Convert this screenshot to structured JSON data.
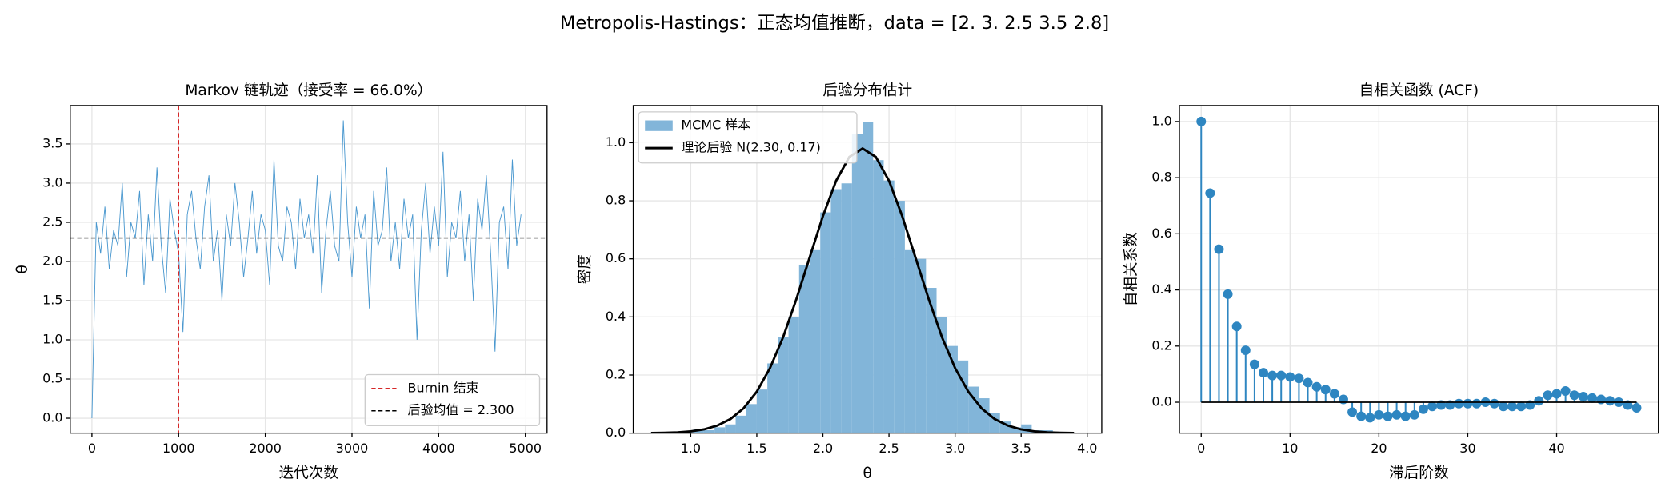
{
  "title": "Metropolis-Hastings：正态均值推断，data = [2.  3.  2.5 3.5 2.8]",
  "chart_data": [
    {
      "type": "line",
      "title": "Markov 链轨迹（接受率 = 66.0%）",
      "xlabel": "迭代次数",
      "ylabel": "θ",
      "xlim": [
        -250,
        5250
      ],
      "ylim": [
        -0.19,
        3.99
      ],
      "grid": true,
      "legend": "lower right",
      "xticks": [
        0,
        1000,
        2000,
        3000,
        4000,
        5000
      ],
      "yticks": [
        {
          "value": 0,
          "label": "0.0"
        },
        0.5,
        {
          "value": 1,
          "label": "1.0"
        },
        1.5,
        {
          "value": 2,
          "label": "2.0"
        },
        2.5,
        {
          "value": 3,
          "label": "3.0"
        },
        3.5
      ],
      "x": [
        0,
        50,
        100,
        150,
        200,
        250,
        300,
        350,
        400,
        450,
        500,
        550,
        600,
        650,
        700,
        750,
        800,
        850,
        900,
        950,
        1000,
        1050,
        1100,
        1150,
        1200,
        1250,
        1300,
        1350,
        1400,
        1450,
        1500,
        1550,
        1600,
        1650,
        1700,
        1750,
        1800,
        1850,
        1900,
        1950,
        2000,
        2050,
        2100,
        2150,
        2200,
        2250,
        2300,
        2350,
        2400,
        2450,
        2500,
        2550,
        2600,
        2650,
        2700,
        2750,
        2800,
        2850,
        2900,
        2950,
        3000,
        3050,
        3100,
        3150,
        3200,
        3250,
        3300,
        3350,
        3400,
        3450,
        3500,
        3550,
        3600,
        3650,
        3700,
        3750,
        3800,
        3850,
        3900,
        3950,
        4000,
        4050,
        4100,
        4150,
        4200,
        4250,
        4300,
        4350,
        4400,
        4450,
        4500,
        4550,
        4600,
        4650,
        4700,
        4750,
        4800,
        4850,
        4900,
        4950
      ],
      "series": [
        {
          "color": "#4a98cf",
          "values": [
            0.0,
            2.5,
            2.1,
            2.7,
            1.9,
            2.4,
            2.2,
            3.0,
            1.8,
            2.5,
            2.3,
            2.9,
            1.7,
            2.6,
            2.0,
            3.2,
            2.2,
            1.6,
            2.8,
            2.4,
            2.1,
            1.1,
            2.6,
            2.9,
            2.3,
            1.9,
            2.7,
            3.1,
            2.0,
            2.4,
            1.5,
            2.6,
            2.2,
            3.0,
            2.5,
            1.8,
            2.3,
            2.9,
            2.1,
            2.6,
            2.4,
            1.7,
            3.3,
            2.2,
            2.0,
            2.7,
            2.5,
            1.9,
            2.8,
            2.3,
            2.6,
            2.1,
            3.1,
            1.6,
            2.4,
            2.9,
            2.2,
            2.0,
            3.8,
            2.5,
            1.8,
            2.7,
            2.3,
            2.6,
            1.4,
            2.9,
            2.2,
            2.4,
            3.2,
            2.0,
            2.5,
            1.9,
            2.8,
            2.3,
            2.6,
            1.0,
            2.4,
            3.0,
            2.1,
            2.7,
            2.2,
            3.4,
            1.8,
            2.5,
            2.3,
            2.9,
            2.0,
            2.6,
            1.5,
            2.8,
            2.4,
            3.1,
            2.1,
            0.85,
            2.5,
            2.7,
            1.9,
            3.3,
            2.2,
            2.6
          ]
        }
      ],
      "reference_lines": [
        {
          "name": "Burnin 结束",
          "orientation": "v",
          "value": 1000,
          "color": "#d62728"
        },
        {
          "name": "后验均值 = 2.300",
          "orientation": "h",
          "value": 2.3,
          "color": "#000000"
        }
      ]
    },
    {
      "type": "histogram",
      "title": "后验分布估计",
      "xlabel": "θ",
      "ylabel": "密度",
      "xlim": [
        0.565,
        4.11
      ],
      "ylim": [
        0,
        1.128
      ],
      "grid": true,
      "legend": "upper left",
      "xticks": [
        {
          "value": 1,
          "label": "1.0"
        },
        1.5,
        {
          "value": 2,
          "label": "2.0"
        },
        2.5,
        {
          "value": 3,
          "label": "3.0"
        },
        3.5,
        {
          "value": 4,
          "label": "4.0"
        }
      ],
      "yticks": [
        {
          "value": 0,
          "label": "0.0"
        },
        0.2,
        0.4,
        0.6,
        0.8,
        {
          "value": 1,
          "label": "1.0"
        }
      ],
      "name": "MCMC 样本",
      "color": "#82b5d9",
      "bins": [
        0.7,
        0.78,
        0.86,
        0.94,
        1.02,
        1.1,
        1.18,
        1.26,
        1.34,
        1.42,
        1.5,
        1.58,
        1.66,
        1.74,
        1.82,
        1.9,
        1.98,
        2.06,
        2.14,
        2.22,
        2.3,
        2.38,
        2.46,
        2.54,
        2.62,
        2.7,
        2.78,
        2.86,
        2.94,
        3.02,
        3.1,
        3.18,
        3.26,
        3.34,
        3.42,
        3.5,
        3.58,
        3.66,
        3.74,
        3.82,
        3.9
      ],
      "values": [
        0.003,
        0,
        0.005,
        0.003,
        0.015,
        0.01,
        0.02,
        0.03,
        0.06,
        0.1,
        0.15,
        0.24,
        0.33,
        0.4,
        0.58,
        0.63,
        0.76,
        0.84,
        0.86,
        1.03,
        1.07,
        0.94,
        0.87,
        0.8,
        0.63,
        0.6,
        0.5,
        0.4,
        0.3,
        0.25,
        0.16,
        0.12,
        0.07,
        0.04,
        0.02,
        0.03,
        0.01,
        0.01,
        0.003,
        0
      ],
      "curve": {
        "name": "理论后验 N(2.30, 0.17)",
        "color": "#000000",
        "x": [
          0.7,
          0.8,
          0.9,
          1.0,
          1.1,
          1.2,
          1.3,
          1.4,
          1.5,
          1.6,
          1.7,
          1.8,
          1.9,
          2.0,
          2.1,
          2.2,
          2.3,
          2.4,
          2.5,
          2.6,
          2.7,
          2.8,
          2.9,
          3.0,
          3.1,
          3.2,
          3.3,
          3.4,
          3.5,
          3.6,
          3.7,
          3.8,
          3.9
        ],
        "y": [
          0.0004,
          0.0011,
          0.0027,
          0.006,
          0.0128,
          0.0257,
          0.0483,
          0.0855,
          0.1426,
          0.224,
          0.331,
          0.462,
          0.605,
          0.747,
          0.869,
          0.951,
          0.98,
          0.951,
          0.869,
          0.747,
          0.605,
          0.462,
          0.331,
          0.224,
          0.1426,
          0.0855,
          0.0483,
          0.0257,
          0.0128,
          0.006,
          0.0027,
          0.0011,
          0.0004
        ]
      }
    },
    {
      "type": "stem",
      "title": "自相关函数 (ACF)",
      "xlabel": "滞后阶数",
      "ylabel": "自相关系数",
      "xlim": [
        -2.45,
        51.45
      ],
      "ylim": [
        -0.11,
        1.057
      ],
      "grid": true,
      "color": "#2e86c1",
      "xticks": [
        0,
        10,
        20,
        30,
        40
      ],
      "yticks": [
        {
          "value": 0,
          "label": "0.0"
        },
        0.2,
        0.4,
        0.6,
        0.8,
        {
          "value": 1,
          "label": "1.0"
        }
      ],
      "x": [
        0,
        1,
        2,
        3,
        4,
        5,
        6,
        7,
        8,
        9,
        10,
        11,
        12,
        13,
        14,
        15,
        16,
        17,
        18,
        19,
        20,
        21,
        22,
        23,
        24,
        25,
        26,
        27,
        28,
        29,
        30,
        31,
        32,
        33,
        34,
        35,
        36,
        37,
        38,
        39,
        40,
        41,
        42,
        43,
        44,
        45,
        46,
        47,
        48,
        49
      ],
      "values": [
        1.0,
        0.745,
        0.545,
        0.385,
        0.27,
        0.185,
        0.135,
        0.105,
        0.095,
        0.095,
        0.09,
        0.085,
        0.07,
        0.055,
        0.045,
        0.03,
        0.01,
        -0.035,
        -0.05,
        -0.055,
        -0.045,
        -0.05,
        -0.045,
        -0.05,
        -0.045,
        -0.025,
        -0.015,
        -0.01,
        -0.01,
        -0.005,
        -0.005,
        -0.005,
        0,
        -0.005,
        -0.015,
        -0.015,
        -0.015,
        -0.01,
        0.005,
        0.025,
        0.03,
        0.04,
        0.025,
        0.02,
        0.015,
        0.01,
        0.005,
        0,
        -0.01,
        -0.02
      ]
    }
  ]
}
